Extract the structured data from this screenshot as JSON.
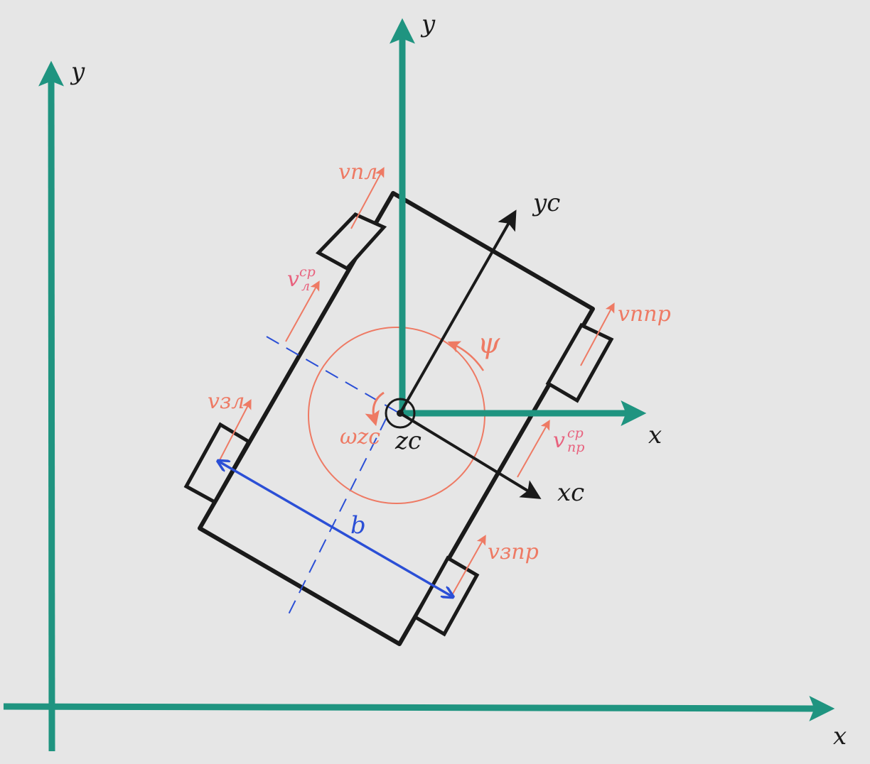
{
  "colors": {
    "background": "#e6e6e6",
    "global_axes": "#1f9480",
    "vehicle_outline": "#1a1a1a",
    "velocity_vectors": "#ee7a64",
    "avg_velocity_labels": "#e8627e",
    "track_width_b": "#2b4fd6"
  },
  "global_frame": {
    "x_label": "x",
    "y_label": "y"
  },
  "center_frame": {
    "x_label": "x",
    "y_label": "y"
  },
  "body_frame": {
    "x_label": "xc",
    "y_label": "yc",
    "z_label": "zc"
  },
  "angles": {
    "heading": "ψ",
    "yaw_rate": "ωzc"
  },
  "wheel_velocities": {
    "front_left": "vпл",
    "front_right": "vппр",
    "rear_left": "vзл",
    "rear_right": "vзпр"
  },
  "side_velocities": {
    "left": {
      "base": "v",
      "sub": "л",
      "sup": "ср"
    },
    "right": {
      "base": "v",
      "sub": "пр",
      "sup": "ср"
    }
  },
  "dimensions": {
    "track_width": "b"
  }
}
